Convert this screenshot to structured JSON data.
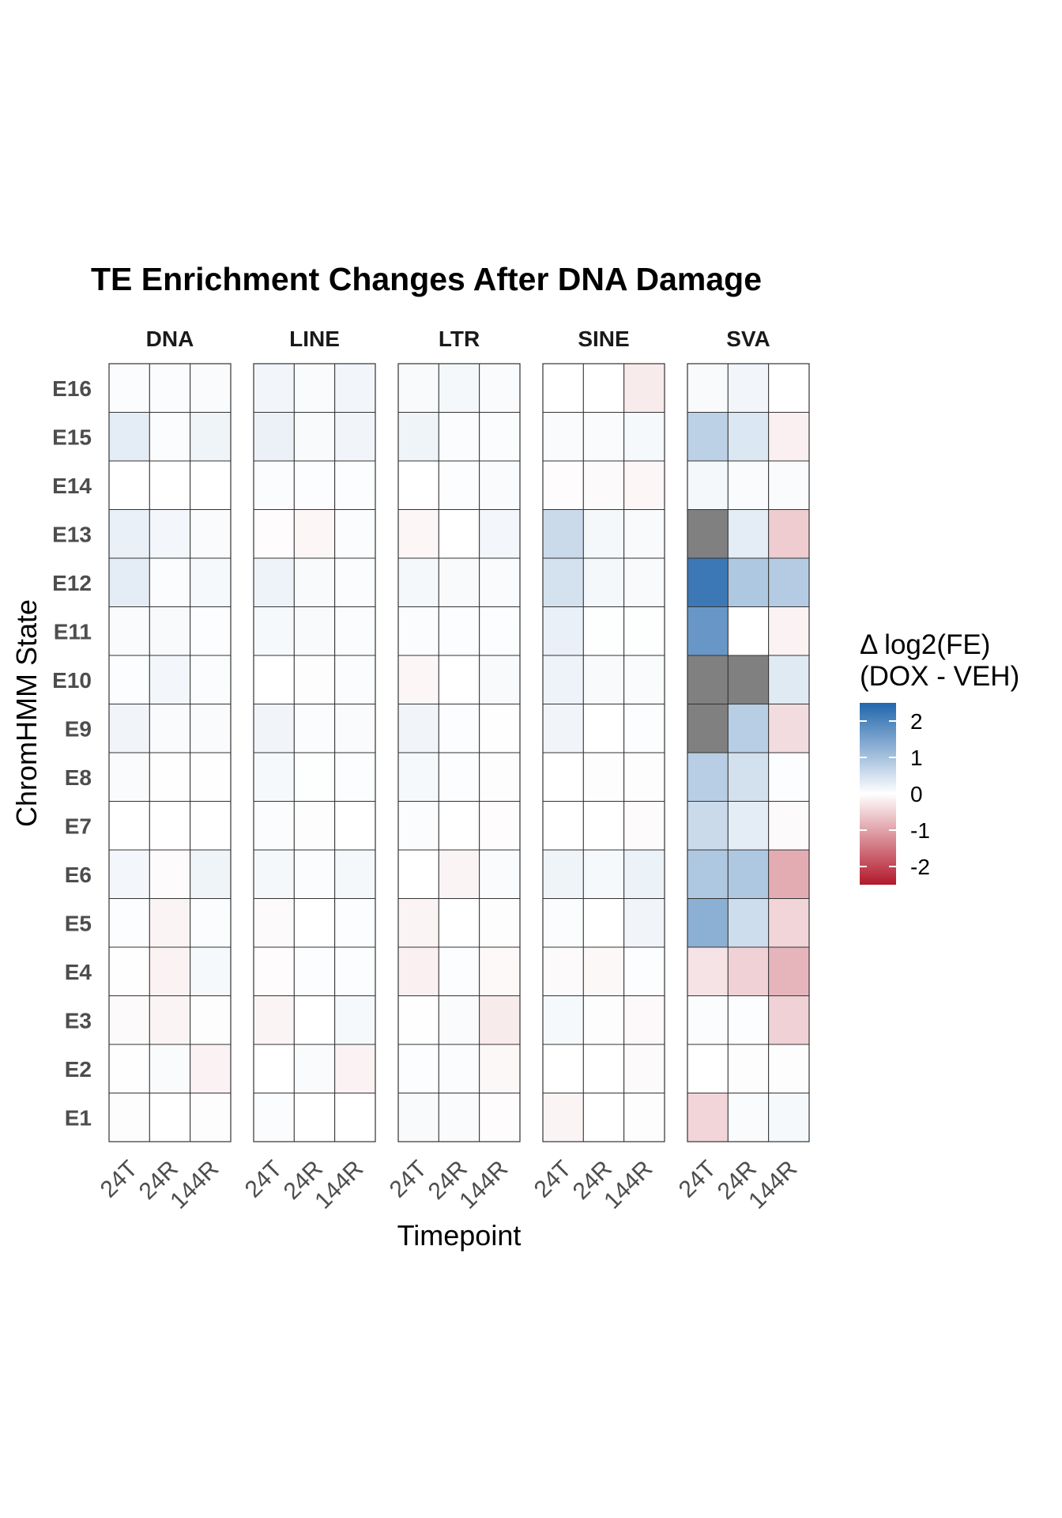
{
  "chart_data": {
    "type": "heatmap",
    "title": "TE Enrichment Changes After DNA Damage",
    "xlabel": "Timepoint",
    "ylabel": "ChromHMM State",
    "facets": [
      "DNA",
      "LINE",
      "LTR",
      "SINE",
      "SVA"
    ],
    "timepoints": [
      "24T",
      "24R",
      "144R"
    ],
    "states": [
      "E16",
      "E15",
      "E14",
      "E13",
      "E12",
      "E11",
      "E10",
      "E9",
      "E8",
      "E7",
      "E6",
      "E5",
      "E4",
      "E3",
      "E2",
      "E1"
    ],
    "legend": {
      "title_line1": "Δ log2(FE)",
      "title_line2": "(DOX - VEH)",
      "ticks": [
        "2",
        "1",
        "0",
        "-1",
        "-2"
      ],
      "range": [
        -2.5,
        2.5
      ],
      "low_color": "#b2182b",
      "mid_color": "#ffffff",
      "high_color": "#2166ac",
      "na_color": "#808080"
    },
    "values": {
      "DNA": [
        [
          0.05,
          0.05,
          0.06
        ],
        [
          0.3,
          0.05,
          0.18
        ],
        [
          0.0,
          0.0,
          0.0
        ],
        [
          0.25,
          0.14,
          0.07
        ],
        [
          0.3,
          0.05,
          0.1
        ],
        [
          0.06,
          0.08,
          0.03
        ],
        [
          0.03,
          0.14,
          0.05
        ],
        [
          0.16,
          0.06,
          0.06
        ],
        [
          0.06,
          0.01,
          0.01
        ],
        [
          0.0,
          0.0,
          0.0
        ],
        [
          0.14,
          -0.04,
          0.18
        ],
        [
          0.04,
          -0.12,
          0.05
        ],
        [
          0.01,
          -0.14,
          0.1
        ],
        [
          -0.05,
          -0.12,
          -0.02
        ],
        [
          -0.01,
          0.06,
          -0.14
        ],
        [
          -0.02,
          0.0,
          -0.02
        ]
      ],
      "LINE": [
        [
          0.15,
          0.06,
          0.15
        ],
        [
          0.23,
          0.08,
          0.16
        ],
        [
          0.05,
          0.03,
          0.03
        ],
        [
          -0.03,
          -0.1,
          0.05
        ],
        [
          0.2,
          0.08,
          0.05
        ],
        [
          0.1,
          0.08,
          0.05
        ],
        [
          0.0,
          -0.02,
          0.05
        ],
        [
          0.16,
          0.05,
          0.06
        ],
        [
          0.1,
          0.02,
          0.03
        ],
        [
          0.05,
          -0.02,
          0.0
        ],
        [
          0.12,
          0.05,
          0.12
        ],
        [
          -0.05,
          0.0,
          0.04
        ],
        [
          -0.03,
          0.03,
          0.03
        ],
        [
          -0.12,
          0.0,
          0.1
        ],
        [
          0.0,
          0.06,
          -0.14
        ],
        [
          0.05,
          0.0,
          0.0
        ]
      ],
      "LTR": [
        [
          0.08,
          0.12,
          0.06
        ],
        [
          0.18,
          0.05,
          0.05
        ],
        [
          0.0,
          0.04,
          0.06
        ],
        [
          -0.1,
          0.0,
          0.14
        ],
        [
          0.12,
          0.08,
          0.07
        ],
        [
          0.05,
          0.04,
          0.04
        ],
        [
          -0.1,
          0.0,
          0.08
        ],
        [
          0.16,
          0.03,
          0.01
        ],
        [
          0.1,
          0.03,
          -0.02
        ],
        [
          0.05,
          0.0,
          -0.03
        ],
        [
          0.0,
          -0.12,
          0.06
        ],
        [
          -0.12,
          0.0,
          -0.02
        ],
        [
          -0.16,
          0.03,
          -0.07
        ],
        [
          0.01,
          0.07,
          -0.22
        ],
        [
          0.04,
          0.05,
          -0.08
        ],
        [
          0.08,
          0.06,
          -0.03
        ]
      ],
      "SINE": [
        [
          0.0,
          0.0,
          -0.22
        ],
        [
          0.06,
          0.07,
          0.1
        ],
        [
          -0.03,
          -0.05,
          -0.1
        ],
        [
          0.6,
          0.12,
          0.08
        ],
        [
          0.48,
          0.12,
          0.08
        ],
        [
          0.25,
          0.02,
          0.02
        ],
        [
          0.2,
          0.08,
          0.06
        ],
        [
          0.16,
          0.0,
          0.04
        ],
        [
          0.0,
          -0.02,
          -0.02
        ],
        [
          0.0,
          0.0,
          -0.04
        ],
        [
          0.18,
          0.1,
          0.22
        ],
        [
          0.05,
          0.0,
          0.16
        ],
        [
          -0.05,
          -0.08,
          0.04
        ],
        [
          0.1,
          -0.02,
          -0.06
        ],
        [
          0.0,
          0.0,
          -0.05
        ],
        [
          -0.12,
          0.0,
          -0.02
        ]
      ],
      "SVA": [
        [
          0.08,
          0.15,
          0.0
        ],
        [
          0.75,
          0.4,
          -0.16
        ],
        [
          0.12,
          0.07,
          0.06
        ],
        [
          null,
          0.3,
          -0.55
        ],
        [
          2.2,
          0.9,
          0.85
        ],
        [
          1.7,
          0.0,
          -0.14
        ],
        [
          null,
          null,
          0.35
        ],
        [
          null,
          0.8,
          -0.38
        ],
        [
          0.8,
          0.5,
          0.03
        ],
        [
          0.6,
          0.3,
          -0.05
        ],
        [
          0.9,
          0.9,
          -0.9
        ],
        [
          1.3,
          0.55,
          -0.45
        ],
        [
          -0.3,
          -0.5,
          -0.8
        ],
        [
          0.05,
          0.03,
          -0.5
        ],
        [
          0.0,
          -0.02,
          -0.02
        ],
        [
          -0.45,
          0.07,
          0.1
        ]
      ]
    }
  }
}
